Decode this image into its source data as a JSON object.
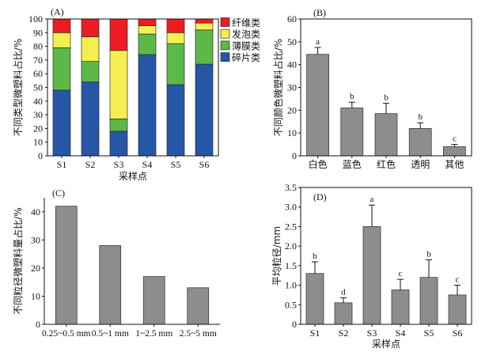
{
  "chart_data": [
    {
      "panel_label": "(A)",
      "type": "bar",
      "stacked": true,
      "categories": [
        "S1",
        "S2",
        "S3",
        "S4",
        "S5",
        "S6"
      ],
      "series": [
        {
          "name": "碎片类",
          "color": "#2656a6",
          "values": [
            48,
            54,
            18,
            74,
            52,
            67
          ]
        },
        {
          "name": "薄膜类",
          "color": "#5cb947",
          "values": [
            31,
            15,
            9,
            15,
            30,
            25
          ]
        },
        {
          "name": "发泡类",
          "color": "#f3ef4f",
          "values": [
            11,
            18,
            50,
            6,
            8,
            5
          ]
        },
        {
          "name": "纤维类",
          "color": "#ed1c24",
          "values": [
            10,
            13,
            23,
            5,
            10,
            3
          ]
        }
      ],
      "xlabel": "采样点",
      "ylabel": "不同类型微塑料占比/%",
      "ylim": [
        0,
        100
      ],
      "yticks": [
        "0",
        "10",
        "20",
        "30",
        "40",
        "50",
        "60",
        "70",
        "80",
        "90",
        "100"
      ],
      "legend": "right",
      "grid": false
    },
    {
      "panel_label": "(B)",
      "type": "bar",
      "categories": [
        "白色",
        "蓝色",
        "红色",
        "透明",
        "其他"
      ],
      "values": [
        44.5,
        21,
        18.5,
        12,
        4
      ],
      "errors": [
        3,
        2.5,
        4.5,
        2.5,
        1
      ],
      "letters": [
        "a",
        "b",
        "b",
        "b",
        "c"
      ],
      "color": "#8d8d8d",
      "ylabel": "不同颜色微塑料占比/%",
      "ylim": [
        0,
        60
      ],
      "yticks": [
        "0",
        "10",
        "20",
        "30",
        "40",
        "50",
        "60"
      ],
      "grid": false
    },
    {
      "panel_label": "(C)",
      "type": "bar",
      "categories": [
        "0.25~0.5 mm",
        "0.5~1 mm",
        "1~2.5 mm",
        "2.5~5 mm"
      ],
      "values": [
        42,
        28,
        17,
        13
      ],
      "color": "#8d8d8d",
      "ylabel": "不同粒径微塑料量占比/%",
      "ylim": [
        0,
        45
      ],
      "yticks": [
        "0",
        "10",
        "20",
        "30",
        "40"
      ],
      "grid": false
    },
    {
      "panel_label": "(D)",
      "type": "bar",
      "categories": [
        "S1",
        "S2",
        "S3",
        "S4",
        "S5",
        "S6"
      ],
      "values": [
        1.3,
        0.55,
        2.5,
        0.88,
        1.2,
        0.75
      ],
      "errors": [
        0.3,
        0.13,
        0.55,
        0.27,
        0.45,
        0.25
      ],
      "letters": [
        "b",
        "d",
        "a",
        "c",
        "b",
        "c"
      ],
      "color": "#8d8d8d",
      "xlabel": "采样点",
      "ylabel": "平均粒径/mm",
      "ylim": [
        0,
        3.5
      ],
      "yticks": [
        "0",
        "0.5",
        "1.0",
        "1.5",
        "2.0",
        "2.5",
        "3.0",
        "3.5"
      ],
      "grid": false
    }
  ]
}
